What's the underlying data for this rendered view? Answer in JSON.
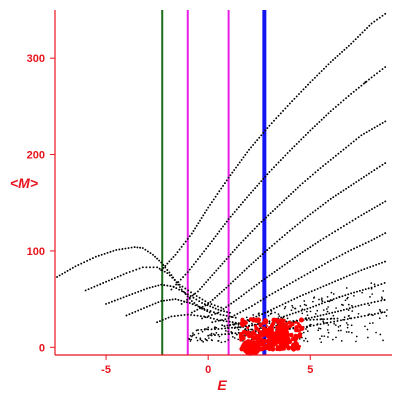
{
  "chart_data": {
    "type": "scatter",
    "xlabel": "E",
    "ylabel": "<M>",
    "xlim": [
      -7.5,
      9.0
    ],
    "ylim": [
      -8,
      350
    ],
    "x_ticks": [
      {
        "value": -5,
        "label": "-5"
      },
      {
        "value": 0,
        "label": "0"
      },
      {
        "value": 5,
        "label": "5"
      }
    ],
    "y_ticks": [
      {
        "value": 0,
        "label": "0"
      },
      {
        "value": 100,
        "label": "100"
      },
      {
        "value": 200,
        "label": "200"
      },
      {
        "value": 300,
        "label": "300"
      }
    ],
    "grid": false,
    "colors": {
      "axes": "#e8141e",
      "points": "#000000",
      "red_points": "#ff0000"
    },
    "vertical_lines": [
      {
        "x": -2.25,
        "color": "#1a6e1a",
        "width": 2
      },
      {
        "x": -1.0,
        "color": "#e81ee8",
        "width": 2
      },
      {
        "x": 1.0,
        "color": "#e81ee8",
        "width": 2
      },
      {
        "x": 2.75,
        "color": "#1414f0",
        "width": 4
      }
    ],
    "series": [
      {
        "color": "#000000",
        "points": [
          [
            -7.4,
            73
          ],
          [
            -6.5,
            84
          ],
          [
            -5.5,
            94
          ],
          [
            -4.5,
            101
          ],
          [
            -3.6,
            104
          ],
          [
            -3.2,
            103
          ],
          [
            -2.7,
            96
          ],
          [
            -2.3,
            88
          ],
          [
            -1.8,
            75
          ],
          [
            -1.3,
            60
          ],
          [
            -0.8,
            48
          ],
          [
            -0.3,
            40
          ],
          [
            0.2,
            35
          ]
        ]
      },
      {
        "color": "#000000",
        "points": [
          [
            -6.0,
            59
          ],
          [
            -5.0,
            68
          ],
          [
            -4.0,
            77
          ],
          [
            -3.2,
            83
          ],
          [
            -2.5,
            83
          ],
          [
            -2.0,
            77
          ],
          [
            -1.4,
            65
          ],
          [
            -0.7,
            55
          ],
          [
            0.0,
            46
          ],
          [
            0.8,
            40
          ]
        ]
      },
      {
        "color": "#000000",
        "points": [
          [
            -5.0,
            45
          ],
          [
            -4.0,
            53
          ],
          [
            -3.0,
            61
          ],
          [
            -2.3,
            65
          ],
          [
            -1.7,
            63
          ],
          [
            -1.0,
            55
          ],
          [
            -0.3,
            46
          ],
          [
            0.5,
            39
          ],
          [
            1.2,
            35
          ]
        ]
      },
      {
        "color": "#000000",
        "points": [
          [
            -4.0,
            33
          ],
          [
            -3.0,
            42
          ],
          [
            -2.3,
            48
          ],
          [
            -1.6,
            50
          ],
          [
            -0.9,
            46
          ],
          [
            -0.2,
            40
          ],
          [
            0.6,
            34
          ],
          [
            1.5,
            30
          ]
        ]
      },
      {
        "color": "#000000",
        "points": [
          [
            -2.5,
            26
          ],
          [
            -1.8,
            32
          ],
          [
            -1.0,
            34
          ],
          [
            -0.2,
            32
          ],
          [
            0.6,
            28
          ],
          [
            1.5,
            25
          ]
        ]
      },
      {
        "color": "#000000",
        "points": [
          [
            -2.3,
            80
          ],
          [
            -1.6,
            96
          ],
          [
            -0.8,
            118
          ],
          [
            0.0,
            145
          ],
          [
            1.0,
            176
          ],
          [
            2.0,
            205
          ],
          [
            3.0,
            230
          ],
          [
            4.0,
            253
          ],
          [
            5.0,
            275
          ],
          [
            6.0,
            296
          ],
          [
            7.0,
            315
          ],
          [
            8.0,
            336
          ],
          [
            8.8,
            348
          ]
        ]
      },
      {
        "color": "#000000",
        "points": [
          [
            -1.8,
            60
          ],
          [
            -1.0,
            78
          ],
          [
            0.0,
            105
          ],
          [
            1.0,
            133
          ],
          [
            2.0,
            158
          ],
          [
            3.0,
            182
          ],
          [
            4.0,
            204
          ],
          [
            5.0,
            225
          ],
          [
            6.0,
            245
          ],
          [
            7.0,
            263
          ],
          [
            8.0,
            280
          ],
          [
            8.8,
            293
          ]
        ]
      },
      {
        "color": "#000000",
        "points": [
          [
            -1.3,
            45
          ],
          [
            -0.5,
            58
          ],
          [
            0.5,
            82
          ],
          [
            1.5,
            106
          ],
          [
            2.5,
            128
          ],
          [
            3.5,
            148
          ],
          [
            4.5,
            168
          ],
          [
            5.5,
            186
          ],
          [
            6.5,
            203
          ],
          [
            7.5,
            220
          ],
          [
            8.8,
            236
          ]
        ]
      },
      {
        "color": "#000000",
        "points": [
          [
            -0.8,
            36
          ],
          [
            0.0,
            45
          ],
          [
            1.0,
            64
          ],
          [
            2.0,
            84
          ],
          [
            3.0,
            103
          ],
          [
            4.0,
            121
          ],
          [
            5.0,
            138
          ],
          [
            6.0,
            154
          ],
          [
            7.0,
            168
          ],
          [
            8.0,
            182
          ],
          [
            8.8,
            193
          ]
        ]
      },
      {
        "color": "#000000",
        "points": [
          [
            -0.3,
            30
          ],
          [
            0.5,
            36
          ],
          [
            1.5,
            51
          ],
          [
            2.5,
            67
          ],
          [
            3.5,
            82
          ],
          [
            4.5,
            97
          ],
          [
            5.5,
            111
          ],
          [
            6.5,
            124
          ],
          [
            7.5,
            137
          ],
          [
            8.8,
            153
          ]
        ]
      },
      {
        "color": "#000000",
        "points": [
          [
            0.2,
            26
          ],
          [
            1.0,
            30
          ],
          [
            2.0,
            41
          ],
          [
            3.0,
            54
          ],
          [
            4.0,
            66
          ],
          [
            5.0,
            78
          ],
          [
            6.0,
            90
          ],
          [
            7.0,
            101
          ],
          [
            8.0,
            111
          ],
          [
            8.8,
            120
          ]
        ]
      },
      {
        "color": "#000000",
        "points": [
          [
            0.8,
            22
          ],
          [
            1.5,
            25
          ],
          [
            2.5,
            33
          ],
          [
            3.5,
            43
          ],
          [
            4.5,
            53
          ],
          [
            5.5,
            62
          ],
          [
            6.5,
            71
          ],
          [
            7.5,
            80
          ],
          [
            8.8,
            90
          ]
        ]
      },
      {
        "color": "#000000",
        "points": [
          [
            1.3,
            20
          ],
          [
            2.0,
            22
          ],
          [
            3.0,
            27
          ],
          [
            4.0,
            34
          ],
          [
            5.0,
            41
          ],
          [
            6.0,
            49
          ],
          [
            7.0,
            56
          ],
          [
            8.0,
            62
          ],
          [
            8.8,
            68
          ]
        ]
      },
      {
        "color": "#000000",
        "points": [
          [
            1.8,
            18
          ],
          [
            2.5,
            19
          ],
          [
            3.5,
            23
          ],
          [
            4.5,
            28
          ],
          [
            5.5,
            33
          ],
          [
            6.5,
            38
          ],
          [
            7.5,
            44
          ],
          [
            8.8,
            50
          ]
        ]
      },
      {
        "color": "#000000",
        "points": [
          [
            2.3,
            15
          ],
          [
            3.0,
            16
          ],
          [
            4.0,
            19
          ],
          [
            5.0,
            22
          ],
          [
            6.0,
            26
          ],
          [
            7.0,
            30
          ],
          [
            8.0,
            34
          ],
          [
            8.8,
            37
          ]
        ]
      },
      {
        "color": "#000000",
        "points": [
          [
            -0.5,
            18
          ],
          [
            0.5,
            19
          ],
          [
            1.5,
            21
          ],
          [
            2.5,
            24
          ],
          [
            3.5,
            26
          ],
          [
            4.5,
            28
          ],
          [
            5.5,
            29
          ],
          [
            6.5,
            30
          ]
        ]
      },
      {
        "color": "#000000",
        "points": [
          [
            0.0,
            12
          ],
          [
            1.0,
            14
          ],
          [
            2.0,
            16
          ],
          [
            3.0,
            18
          ],
          [
            4.0,
            20
          ],
          [
            5.0,
            21
          ]
        ]
      },
      {
        "color": "#000000",
        "points": [
          [
            7.7,
            275
          ]
        ]
      }
    ],
    "red_cluster": {
      "x_range": [
        1.6,
        4.6
      ],
      "y_range": [
        -2,
        30
      ],
      "big_x": [
        1.9,
        2.3
      ],
      "big_y": [
        -3,
        2
      ]
    }
  }
}
